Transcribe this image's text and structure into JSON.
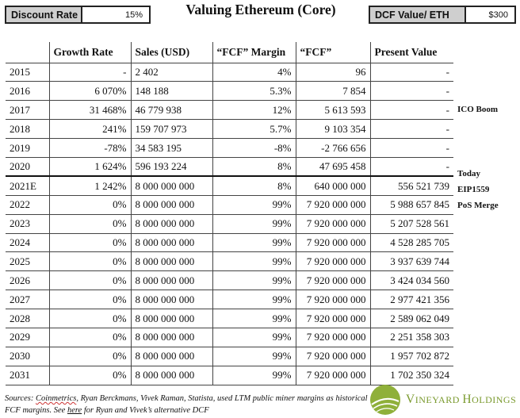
{
  "header": {
    "title": "Valuing Ethereum (Core)",
    "discount_rate": {
      "label": "Discount Rate",
      "value": "15%"
    },
    "dcf_value": {
      "label": "DCF Value/ ETH",
      "value": "$300"
    }
  },
  "table": {
    "columns": [
      "",
      "Growth Rate",
      "Sales (USD)",
      "“FCF” Margin",
      "“FCF”",
      "Present Value"
    ],
    "rows": [
      {
        "year": "2015",
        "growth": "-",
        "sales": "2 402",
        "margin": "4%",
        "fcf": "96",
        "pv": "-"
      },
      {
        "year": "2016",
        "growth": "6 070%",
        "sales": "148 188",
        "margin": "5.3%",
        "fcf": "7 854",
        "pv": "-"
      },
      {
        "year": "2017",
        "growth": "31 468%",
        "sales": "46 779 938",
        "margin": "12%",
        "fcf": "5 613 593",
        "pv": "-"
      },
      {
        "year": "2018",
        "growth": "241%",
        "sales": "159 707 973",
        "margin": "5.7%",
        "fcf": "9 103 354",
        "pv": "-"
      },
      {
        "year": "2019",
        "growth": "-78%",
        "sales": "34 583 195",
        "margin": "-8%",
        "fcf": "-2 766 656",
        "pv": "-"
      },
      {
        "year": "2020",
        "growth": "1 624%",
        "sales": "596 193 224",
        "margin": "8%",
        "fcf": "47 695 458",
        "pv": "-"
      },
      {
        "year": "2021E",
        "growth": "1 242%",
        "sales": "8 000 000 000",
        "margin": "8%",
        "fcf": "640 000 000",
        "pv": "556 521 739"
      },
      {
        "year": "2022",
        "growth": "0%",
        "sales": "8 000 000 000",
        "margin": "99%",
        "fcf": "7 920 000 000",
        "pv": "5 988 657 845"
      },
      {
        "year": "2023",
        "growth": "0%",
        "sales": "8 000 000 000",
        "margin": "99%",
        "fcf": "7 920 000 000",
        "pv": "5 207 528 561"
      },
      {
        "year": "2024",
        "growth": "0%",
        "sales": "8 000 000 000",
        "margin": "99%",
        "fcf": "7 920 000 000",
        "pv": "4 528 285 705"
      },
      {
        "year": "2025",
        "growth": "0%",
        "sales": "8 000 000 000",
        "margin": "99%",
        "fcf": "7 920 000 000",
        "pv": "3 937 639 744"
      },
      {
        "year": "2026",
        "growth": "0%",
        "sales": "8 000 000 000",
        "margin": "99%",
        "fcf": "7 920 000 000",
        "pv": "3 424 034 560"
      },
      {
        "year": "2027",
        "growth": "0%",
        "sales": "8 000 000 000",
        "margin": "99%",
        "fcf": "7 920 000 000",
        "pv": "2 977 421 356"
      },
      {
        "year": "2028",
        "growth": "0%",
        "sales": "8 000 000 000",
        "margin": "99%",
        "fcf": "7 920 000 000",
        "pv": "2 589 062 049"
      },
      {
        "year": "2029",
        "growth": "0%",
        "sales": "8 000 000 000",
        "margin": "99%",
        "fcf": "7 920 000 000",
        "pv": "2 251 358 303"
      },
      {
        "year": "2030",
        "growth": "0%",
        "sales": "8 000 000 000",
        "margin": "99%",
        "fcf": "7 920 000 000",
        "pv": "1 957 702 872"
      },
      {
        "year": "2031",
        "growth": "0%",
        "sales": "8 000 000 000",
        "margin": "99%",
        "fcf": "7 920 000 000",
        "pv": "1 702 350 324"
      }
    ]
  },
  "annotations": {
    "ico_boom": "ICO Boom",
    "today": "Today",
    "eip1559": "EIP1559",
    "pos_merge": "PoS Merge"
  },
  "footer": {
    "sources_prefix": "Sources: ",
    "sources_coinmetrics": "Coinmetrics",
    "sources_middle": ", Ryan Berckmans, Vivek Raman, Statista, used LTM public miner margins as historical FCF margins. See ",
    "sources_here": "here",
    "sources_suffix": " for Ryan and Vivek’s alternative DCF",
    "logo_first_initial": "V",
    "logo_first_rest": "INEYARD",
    "logo_second_initial": "H",
    "logo_second_rest": "OLDINGS"
  },
  "colors": {
    "brand_green": "#7a9a2e",
    "label_grey": "#cfcfcf"
  },
  "icons": {
    "logo": "vineyard-logo-icon"
  }
}
